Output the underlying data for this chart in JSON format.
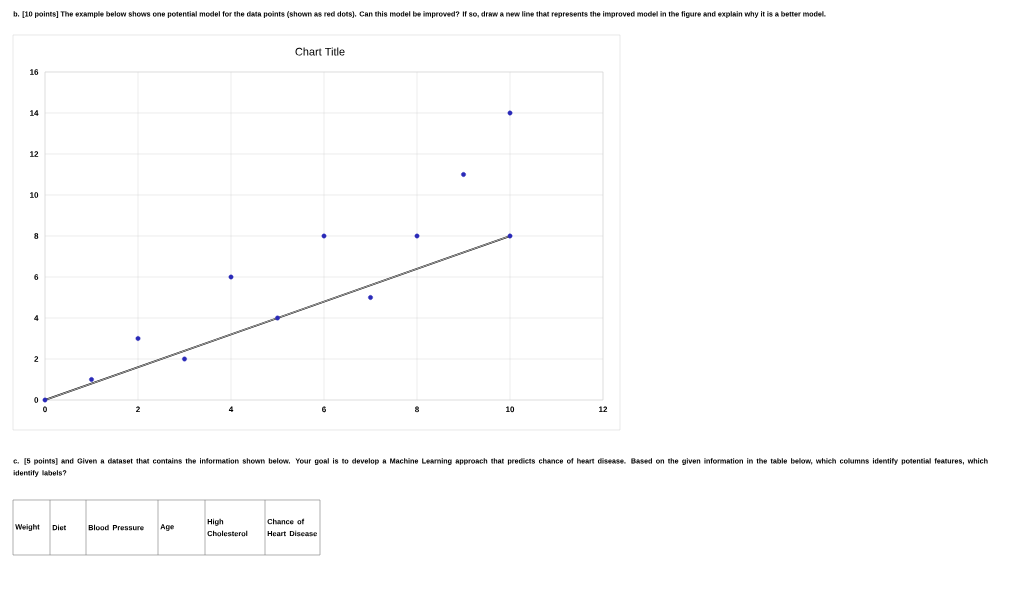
{
  "chart_data": {
    "type": "scatter",
    "title": "Chart Title",
    "series": [
      {
        "color": "#2a2ab8",
        "marker": "circle",
        "x": [
          0,
          1,
          2,
          3,
          4,
          5,
          6,
          7,
          8,
          9,
          10,
          10
        ],
        "values": [
          0,
          1,
          3,
          2,
          6,
          4,
          8,
          5,
          8,
          11,
          14,
          8
        ]
      },
      {
        "type": "line",
        "color": "#000000",
        "marker": "none",
        "x": [
          0,
          10
        ],
        "values": [
          0,
          8
        ]
      }
    ],
    "xlim": [
      0,
      12
    ],
    "xticks": [
      0,
      2,
      4,
      6,
      8,
      10,
      12
    ],
    "ylim": [
      0,
      16
    ],
    "yticks": [
      0,
      2,
      4,
      6,
      8,
      10,
      12,
      14,
      16
    ],
    "grid": true,
    "annotations": [
      "b. [10 points] The example below shows one potential model for the data points (shown as red dots). Can this model be improved? If so, draw a new line that represents the improved model in the figure and explain why it is a better model.",
      "c. [5 points] and Given a dataset that contains the information shown below. Your goal is to develop a Machine Learning approach that predicts chance of heart disease. Based on the given information in the table below, which columns identify potential features, which identify labels?",
      "Weight",
      "Diet",
      "Blood Pressure",
      "Age",
      "High Cholesterol",
      "Chance of Heart Disease"
    ]
  }
}
